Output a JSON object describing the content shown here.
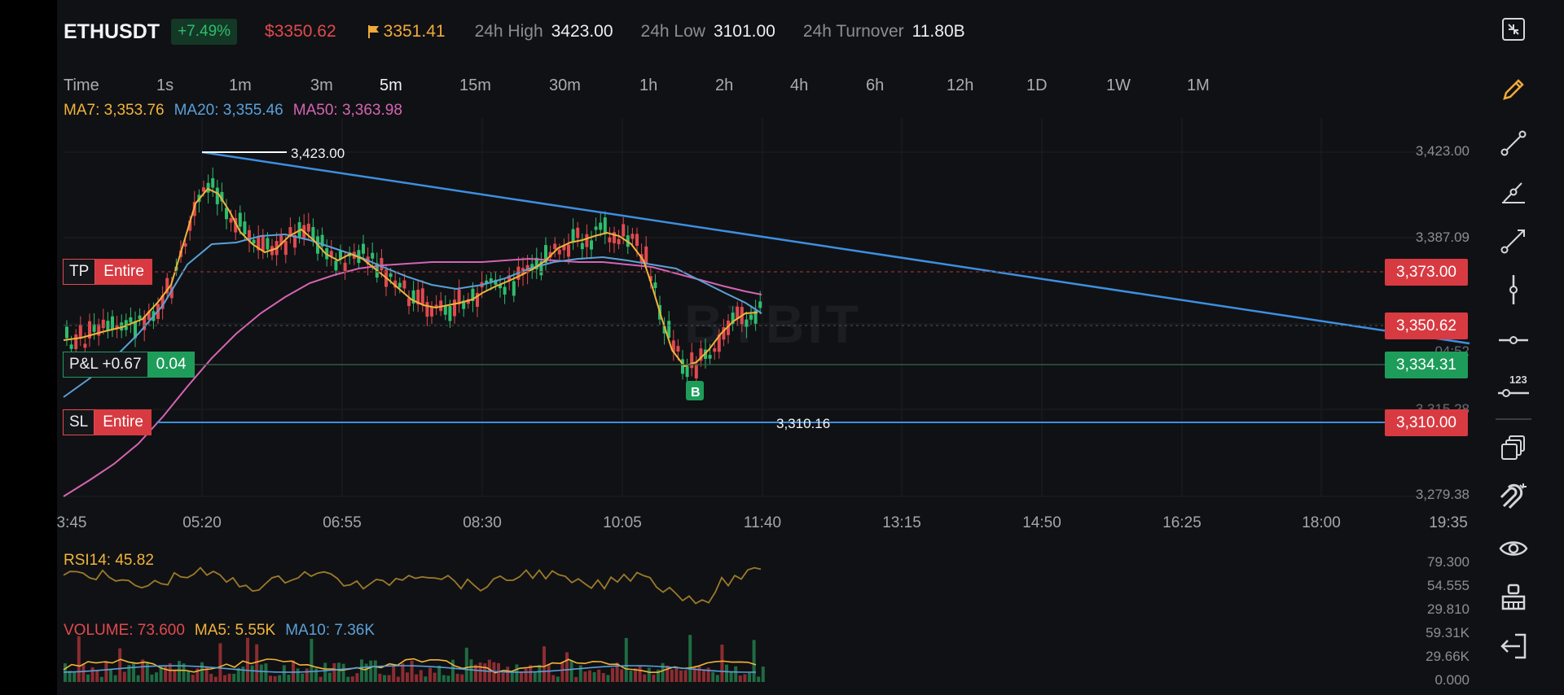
{
  "header": {
    "symbol": "ETHUSDT",
    "change": "+7.49%",
    "last_price": "$3350.62",
    "mark_price": "3351.41",
    "high_label": "24h High",
    "high_value": "3423.00",
    "low_label": "24h Low",
    "low_value": "3101.00",
    "turnover_label": "24h Turnover",
    "turnover_value": "11.80B"
  },
  "timeframes": [
    "Time",
    "1s",
    "1m",
    "3m",
    "5m",
    "15m",
    "30m",
    "1h",
    "2h",
    "4h",
    "6h",
    "12h",
    "1D",
    "1W",
    "1M"
  ],
  "active_timeframe": "5m",
  "moving_averages": {
    "ma7": "MA7: 3,353.76",
    "ma20": "MA20: 3,355.46",
    "ma50": "MA50: 3,363.98"
  },
  "price_axis": [
    "3,423.00",
    "3,387.09",
    "3,279.38"
  ],
  "partial_axis": [
    "04:52",
    "3,315.28"
  ],
  "time_axis": [
    "3:45",
    "05:20",
    "06:55",
    "08:30",
    "10:05",
    "11:40",
    "13:15",
    "14:50",
    "16:25",
    "18:00",
    "19:35"
  ],
  "orders": {
    "tp": {
      "label": "TP",
      "mode": "Entire",
      "price": "3,373.00"
    },
    "sl": {
      "label": "SL",
      "mode": "Entire",
      "price": "3,310.00"
    },
    "position": {
      "pnl": "P&L +0.67",
      "qty": "0.04",
      "price": "3,334.31"
    },
    "current": "3,350.62",
    "high_marker": "3,423.00",
    "low_marker": "3,310.16",
    "buy_marker": "B"
  },
  "watermark": "BYBIT",
  "rsi": {
    "label": "RSI14: 45.82",
    "axis": [
      "79.300",
      "54.555",
      "29.810"
    ]
  },
  "volume": {
    "vol": "VOLUME: 73.600",
    "ma5": "MA5: 5.55K",
    "ma10": "MA10: 7.36K",
    "axis": [
      "59.31K",
      "29.66K",
      "0.000"
    ]
  },
  "colors": {
    "bg": "#101114",
    "up": "#2ebd6e",
    "down": "#e04a4f",
    "ma7": "#f0b43a",
    "ma20": "#5aa0d8",
    "ma50": "#d564b3",
    "trend": "#3d8fe0"
  },
  "toolbar": [
    "collapse-icon",
    "pencil-icon",
    "line-icon",
    "angle-line-icon",
    "ray-icon",
    "vertical-line-icon",
    "horizontal-line-icon",
    "price-label-icon",
    "layers-icon",
    "magnet-icon",
    "eye-icon",
    "eraser-icon",
    "exit-icon"
  ]
}
